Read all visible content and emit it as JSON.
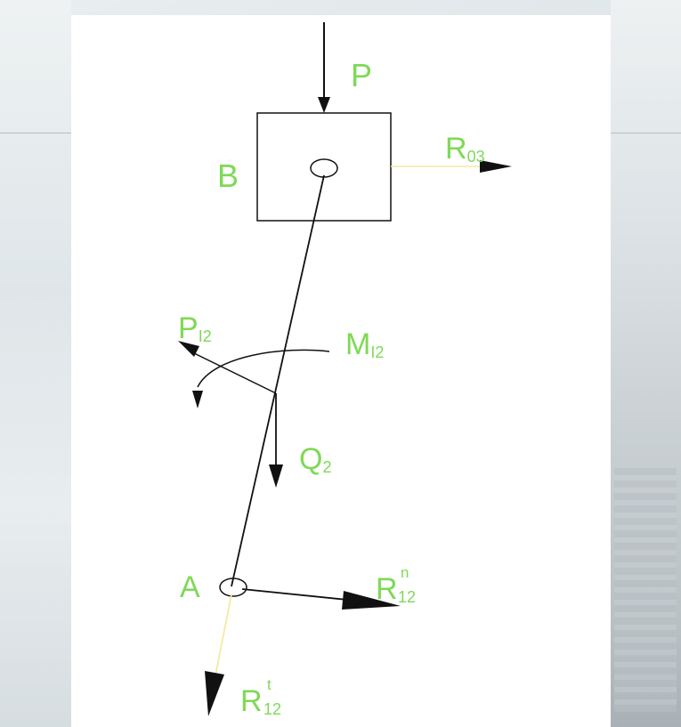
{
  "labels": {
    "load": "P",
    "slider": "B",
    "reaction_03_main": "R",
    "reaction_03_sub": "03",
    "inertia_force_main": "P",
    "inertia_force_sub": "I2",
    "inertia_moment_main": "M",
    "inertia_moment_sub": "I2",
    "weight_main": "Q",
    "weight_sub": "2",
    "pin_a": "A",
    "reaction_n_main": "R",
    "reaction_n_sup": "n",
    "reaction_n_sub": "12",
    "reaction_t_main": "R",
    "reaction_t_sup": "t",
    "reaction_t_sub": "12"
  },
  "colors": {
    "label": "#7ed957",
    "line": "#111111",
    "highlight_line": "#f3e9a0",
    "canvas": "#ffffff"
  }
}
